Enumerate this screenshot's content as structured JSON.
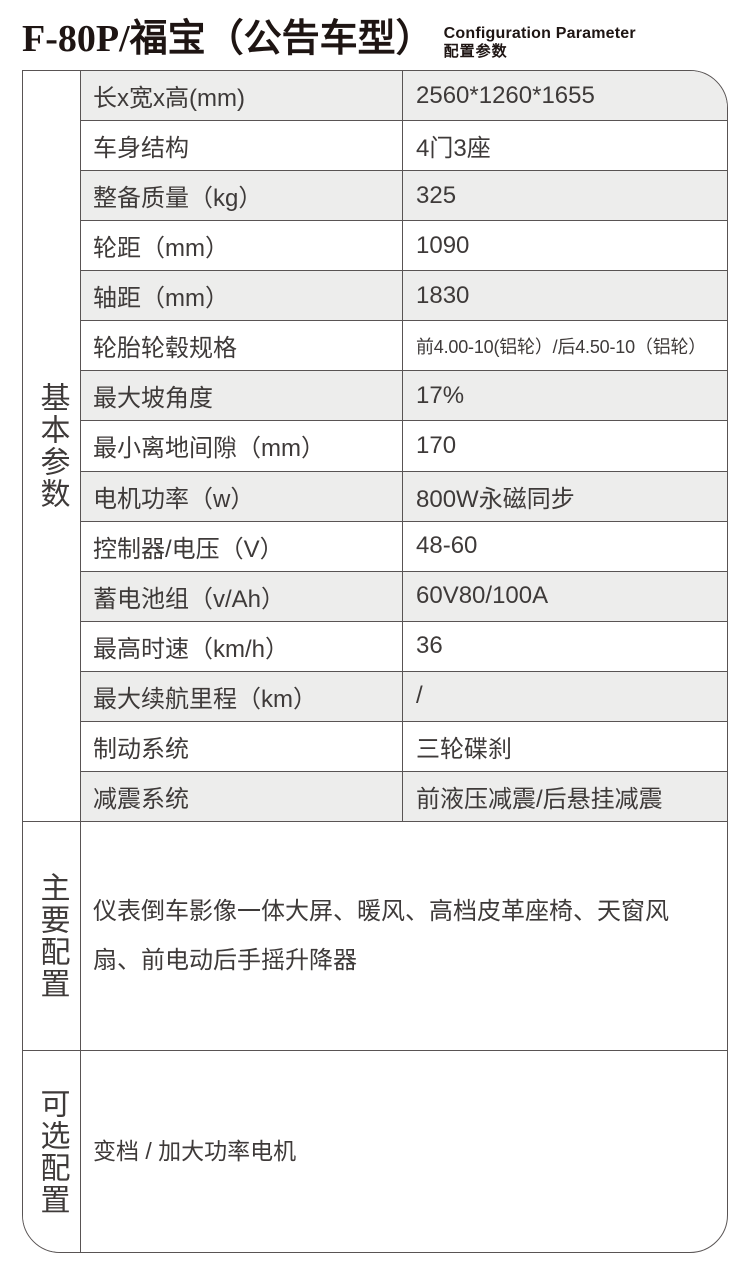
{
  "header": {
    "title": "F-80P/福宝（公告车型）",
    "subtitle_en": "Configuration Parameter",
    "subtitle_zh": "配置参数"
  },
  "table": {
    "sections": {
      "basic": {
        "label": "基本参数"
      },
      "main_config": {
        "label": "主要配置",
        "content": "仪表倒车影像一体大屏、暖风、高档皮革座椅、天窗风扇、前电动后手摇升降器"
      },
      "optional_config": {
        "label": "可选配置",
        "content": "变档 / 加大功率电机"
      }
    },
    "rows": [
      {
        "label": "长x宽x高(mm)",
        "value": "2560*1260*1655"
      },
      {
        "label": "车身结构",
        "value": "4门3座"
      },
      {
        "label": "整备质量（kg）",
        "value": "325"
      },
      {
        "label": "轮距（mm）",
        "value": "1090"
      },
      {
        "label": "轴距（mm）",
        "value": "1830"
      },
      {
        "label": "轮胎轮毂规格",
        "value": "前4.00-10(铝轮）/后4.50-10（铝轮）"
      },
      {
        "label": "最大坡角度",
        "value": "17%"
      },
      {
        "label": "最小离地间隙（mm）",
        "value": "170"
      },
      {
        "label": "电机功率（w）",
        "value": "800W永磁同步"
      },
      {
        "label": "控制器/电压（V）",
        "value": "48-60"
      },
      {
        "label": "蓄电池组（v/Ah）",
        "value": "60V80/100A"
      },
      {
        "label": "最高时速（km/h）",
        "value": "36"
      },
      {
        "label": "最大续航里程（km）",
        "value": "/"
      },
      {
        "label": "制动系统",
        "value": "三轮碟刹"
      },
      {
        "label": "减震系统",
        "value": "前液压减震/后悬挂减震"
      }
    ]
  },
  "colors": {
    "stripe": "#ededec",
    "border": "#595454",
    "text": "#3e3a39",
    "title_text": "#1e1513"
  }
}
